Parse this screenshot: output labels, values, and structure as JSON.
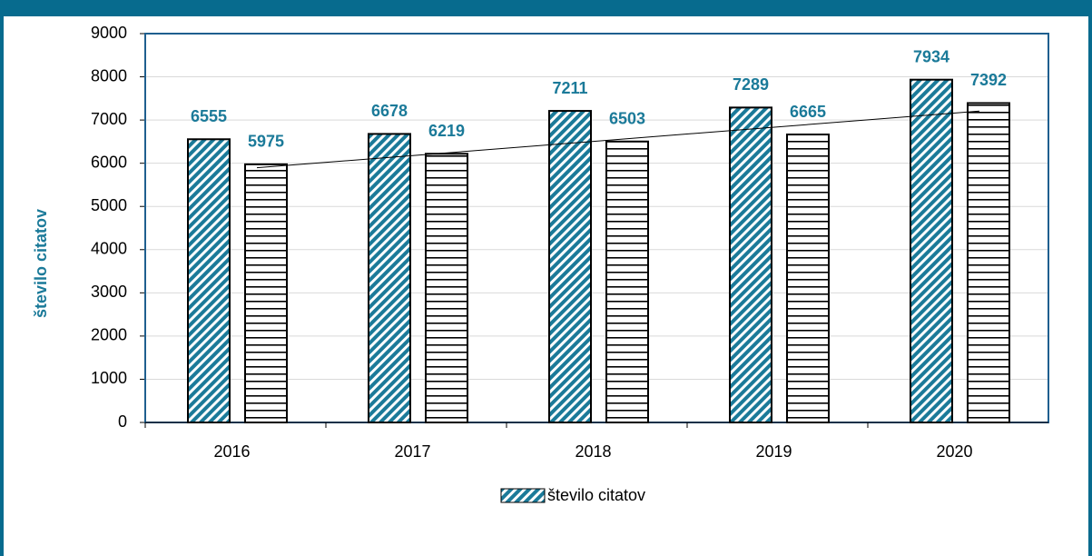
{
  "chart_data": {
    "type": "bar",
    "y_label": "število citatov",
    "categories": [
      "2016",
      "2017",
      "2018",
      "2019",
      "2020"
    ],
    "series": [
      {
        "name": "število citatov",
        "color": "#1b7a99",
        "pattern": "diagonal",
        "values": [
          6555,
          6678,
          7211,
          7289,
          7934
        ]
      },
      {
        "color": "#000000",
        "pattern": "horizontal",
        "values": [
          5975,
          6219,
          6503,
          6665,
          7392
        ],
        "trendline": true
      }
    ],
    "ylim": [
      0,
      9000
    ],
    "yticks": [
      0,
      1000,
      2000,
      3000,
      4000,
      5000,
      6000,
      7000,
      8000,
      9000
    ],
    "grid": true,
    "legend": "bottom",
    "label_color": "#1b7a99"
  }
}
